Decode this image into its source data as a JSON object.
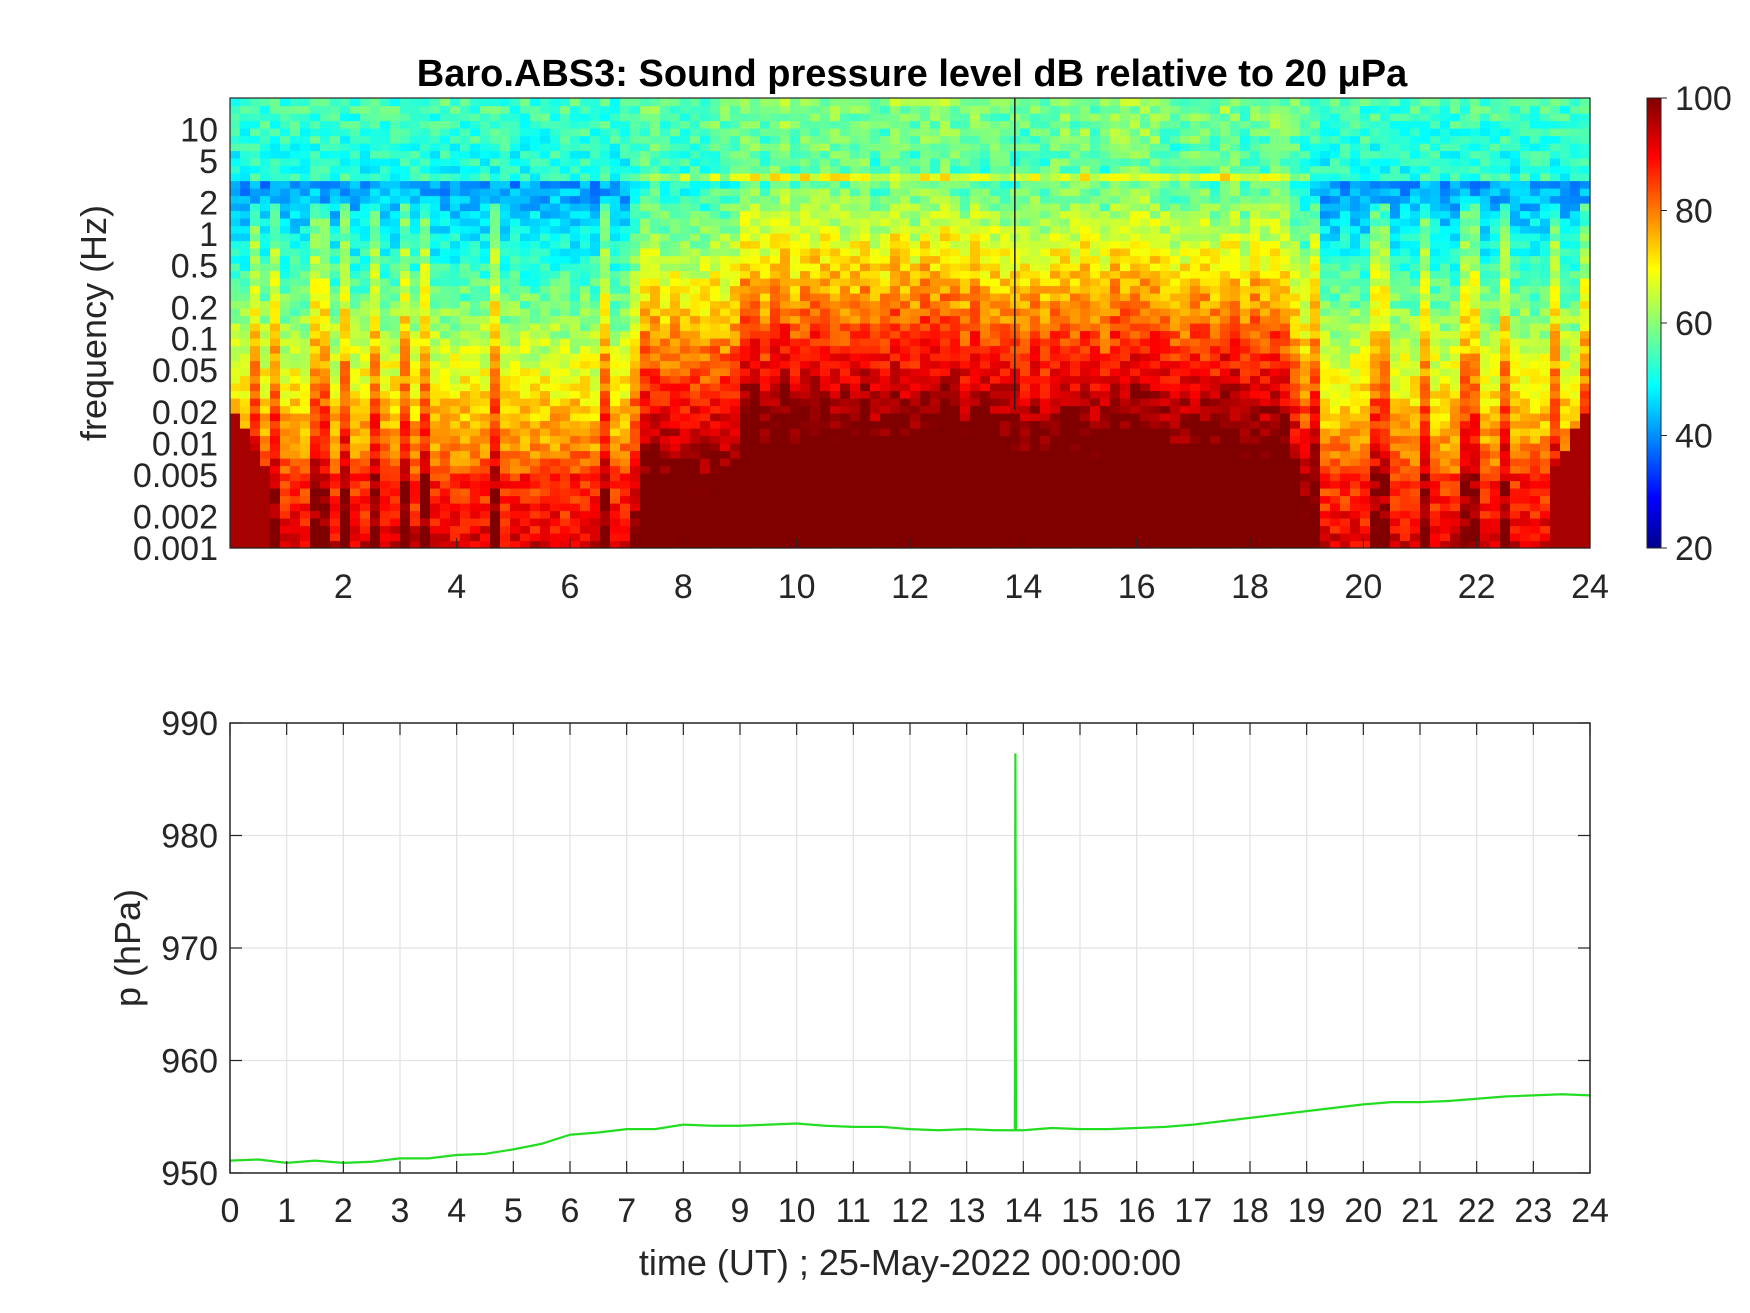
{
  "chart_data": [
    {
      "type": "heatmap",
      "title": "Baro.ABS3: Sound pressure level dB relative to 20 μPa",
      "ylabel": "frequency (Hz)",
      "xlabel": "",
      "x_ticks": [
        "2",
        "4",
        "6",
        "8",
        "10",
        "12",
        "14",
        "16",
        "18",
        "20",
        "22",
        "24"
      ],
      "y_ticks": [
        "10",
        "5",
        "2",
        "1",
        "0.5",
        "0.2",
        "0.1",
        "0.05",
        "0.02",
        "0.01",
        "0.005",
        "0.002",
        "0.001"
      ],
      "xlim": [
        0,
        24
      ],
      "ylim": [
        0.001,
        20
      ],
      "y_scale": "log",
      "colorbar": {
        "ticks": [
          "100",
          "80",
          "60",
          "40",
          "20"
        ],
        "range": [
          20,
          100
        ],
        "colormap": "jet"
      },
      "grid": false
    },
    {
      "type": "line",
      "title": "",
      "xlabel": "time (UT) ; 25-May-2022 00:00:00",
      "ylabel": "p (hPa)",
      "x_ticks": [
        "0",
        "1",
        "2",
        "3",
        "4",
        "5",
        "6",
        "7",
        "8",
        "9",
        "10",
        "11",
        "12",
        "13",
        "14",
        "15",
        "16",
        "17",
        "18",
        "19",
        "20",
        "21",
        "22",
        "23",
        "24"
      ],
      "y_ticks": [
        "990",
        "980",
        "970",
        "960",
        "950"
      ],
      "xlim": [
        0,
        24
      ],
      "ylim": [
        950,
        990
      ],
      "grid": true,
      "series": [
        {
          "color": "#22dd22",
          "x": [
            0,
            0.5,
            1,
            1.5,
            2,
            2.5,
            3,
            3.5,
            4,
            4.5,
            5,
            5.5,
            6,
            6.5,
            7,
            7.5,
            8,
            8.5,
            9,
            9.5,
            10,
            10.5,
            11,
            11.5,
            12,
            12.5,
            13,
            13.5,
            13.85,
            13.86,
            13.87,
            14,
            14.5,
            15,
            15.5,
            16,
            16.5,
            17,
            17.5,
            18,
            18.5,
            19,
            19.5,
            20,
            20.5,
            21,
            21.5,
            22,
            22.5,
            23,
            23.5,
            24
          ],
          "y": [
            951.1,
            951.2,
            950.9,
            951.1,
            950.9,
            951.0,
            951.3,
            951.3,
            951.6,
            951.7,
            952.1,
            952.6,
            953.4,
            953.6,
            953.9,
            953.9,
            954.3,
            954.2,
            954.2,
            954.3,
            954.4,
            954.2,
            954.1,
            954.1,
            953.9,
            953.8,
            953.9,
            953.8,
            953.8,
            987.3,
            953.8,
            953.8,
            954.0,
            953.9,
            953.9,
            954.0,
            954.1,
            954.3,
            954.6,
            954.9,
            955.2,
            955.5,
            955.8,
            956.1,
            956.3,
            956.3,
            956.4,
            956.6,
            956.8,
            956.9,
            957.0,
            956.9
          ]
        }
      ]
    }
  ]
}
